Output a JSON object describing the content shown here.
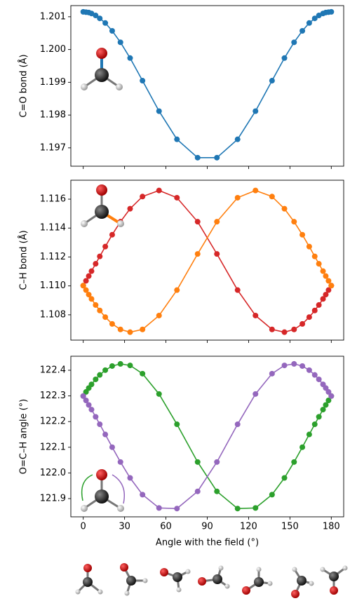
{
  "chart_data": [
    {
      "type": "line",
      "ylabel": "C=O bond (Å)",
      "x": [
        0,
        2,
        4,
        6,
        9,
        12,
        16,
        21,
        27,
        34,
        43,
        55,
        68,
        83,
        97,
        112,
        125,
        137,
        146,
        153,
        159,
        164,
        168,
        171,
        174,
        176,
        178,
        180
      ],
      "series": [
        {
          "color": "#1f77b4",
          "values": [
            1.20115,
            1.20114,
            1.20113,
            1.2011,
            1.20104,
            1.20095,
            1.20081,
            1.20057,
            1.20022,
            1.19974,
            1.19905,
            1.19812,
            1.19726,
            1.1967,
            1.1967,
            1.19726,
            1.19812,
            1.19905,
            1.19974,
            1.20022,
            1.20057,
            1.20081,
            1.20095,
            1.20104,
            1.2011,
            1.20113,
            1.20114,
            1.20115
          ]
        }
      ],
      "xlim": [
        -9,
        189
      ],
      "xticks": [
        0,
        30,
        60,
        90,
        120,
        150,
        180
      ],
      "ylim": [
        1.19644,
        1.20134
      ],
      "yticks": [
        1.197,
        1.198,
        1.199,
        {
          "value": 1.2,
          "label": "1.200"
        },
        1.201
      ]
    },
    {
      "type": "line",
      "ylabel": "C–H bond (Å)",
      "x": [
        0,
        2,
        4,
        6,
        9,
        12,
        16,
        21,
        27,
        34,
        43,
        55,
        68,
        83,
        97,
        112,
        125,
        137,
        146,
        153,
        159,
        164,
        168,
        171,
        174,
        176,
        178,
        180
      ],
      "series": [
        {
          "color": "#d62728",
          "values": [
            1.11002,
            1.11035,
            1.11068,
            1.11102,
            1.11153,
            1.11204,
            1.11272,
            1.11354,
            1.11444,
            1.11534,
            1.11618,
            1.1166,
            1.1161,
            1.11444,
            1.11221,
            1.10971,
            1.10795,
            1.10699,
            1.1068,
            1.10699,
            1.10737,
            1.10784,
            1.1083,
            1.10868,
            1.1091,
            1.1094,
            1.10971,
            1.11002
          ]
        },
        {
          "color": "#ff7f0e",
          "values": [
            1.11002,
            1.10971,
            1.1094,
            1.1091,
            1.10868,
            1.1083,
            1.10784,
            1.10737,
            1.10699,
            1.1068,
            1.10699,
            1.10795,
            1.10971,
            1.11221,
            1.11444,
            1.1161,
            1.1166,
            1.11618,
            1.11534,
            1.11444,
            1.11354,
            1.11272,
            1.11204,
            1.11153,
            1.11102,
            1.11068,
            1.11035,
            1.11002
          ]
        }
      ],
      "xlim": [
        -9,
        189
      ],
      "xticks": [
        0,
        30,
        60,
        90,
        120,
        150,
        180
      ],
      "ylim": [
        1.10625,
        1.11731
      ],
      "yticks": [
        1.108,
        {
          "value": 1.11,
          "label": "1.110"
        },
        1.112,
        1.114,
        1.116
      ]
    },
    {
      "type": "line",
      "ylabel": "O=C–H angle (°)",
      "xlabel": "Angle with the field (°)",
      "x": [
        0,
        2,
        4,
        6,
        9,
        12,
        16,
        21,
        27,
        34,
        43,
        55,
        68,
        83,
        97,
        112,
        125,
        137,
        146,
        153,
        159,
        164,
        168,
        171,
        174,
        176,
        178,
        180
      ],
      "series": [
        {
          "color": "#2ca02c",
          "values": [
            122.2994,
            122.3155,
            122.3307,
            122.345,
            122.3646,
            122.3817,
            122.4004,
            122.4165,
            122.4248,
            122.4188,
            122.3868,
            122.3075,
            122.1895,
            122.0425,
            121.9282,
            121.8612,
            121.8635,
            121.9154,
            121.9806,
            122.0425,
            122.1003,
            122.1499,
            122.1895,
            122.2186,
            122.2468,
            122.2649,
            122.2825,
            122.2994
          ]
        },
        {
          "color": "#9467bd",
          "values": [
            122.2994,
            122.2825,
            122.2649,
            122.2468,
            122.2186,
            122.1895,
            122.1499,
            122.1003,
            122.0425,
            121.9806,
            121.9154,
            121.8635,
            121.8612,
            121.9282,
            122.0425,
            122.1895,
            122.3075,
            122.3868,
            122.4188,
            122.4248,
            122.4165,
            122.4004,
            122.3817,
            122.3646,
            122.345,
            122.3307,
            122.3155,
            122.2994
          ]
        }
      ],
      "xlim": [
        -9,
        189
      ],
      "xticks": [
        0,
        30,
        60,
        90,
        120,
        150,
        180
      ],
      "ylim": [
        121.829,
        122.4546
      ],
      "yticks": [
        121.9,
        {
          "value": 122,
          "label": "122.0"
        },
        122.1,
        122.2,
        122.3,
        122.4
      ]
    }
  ]
}
